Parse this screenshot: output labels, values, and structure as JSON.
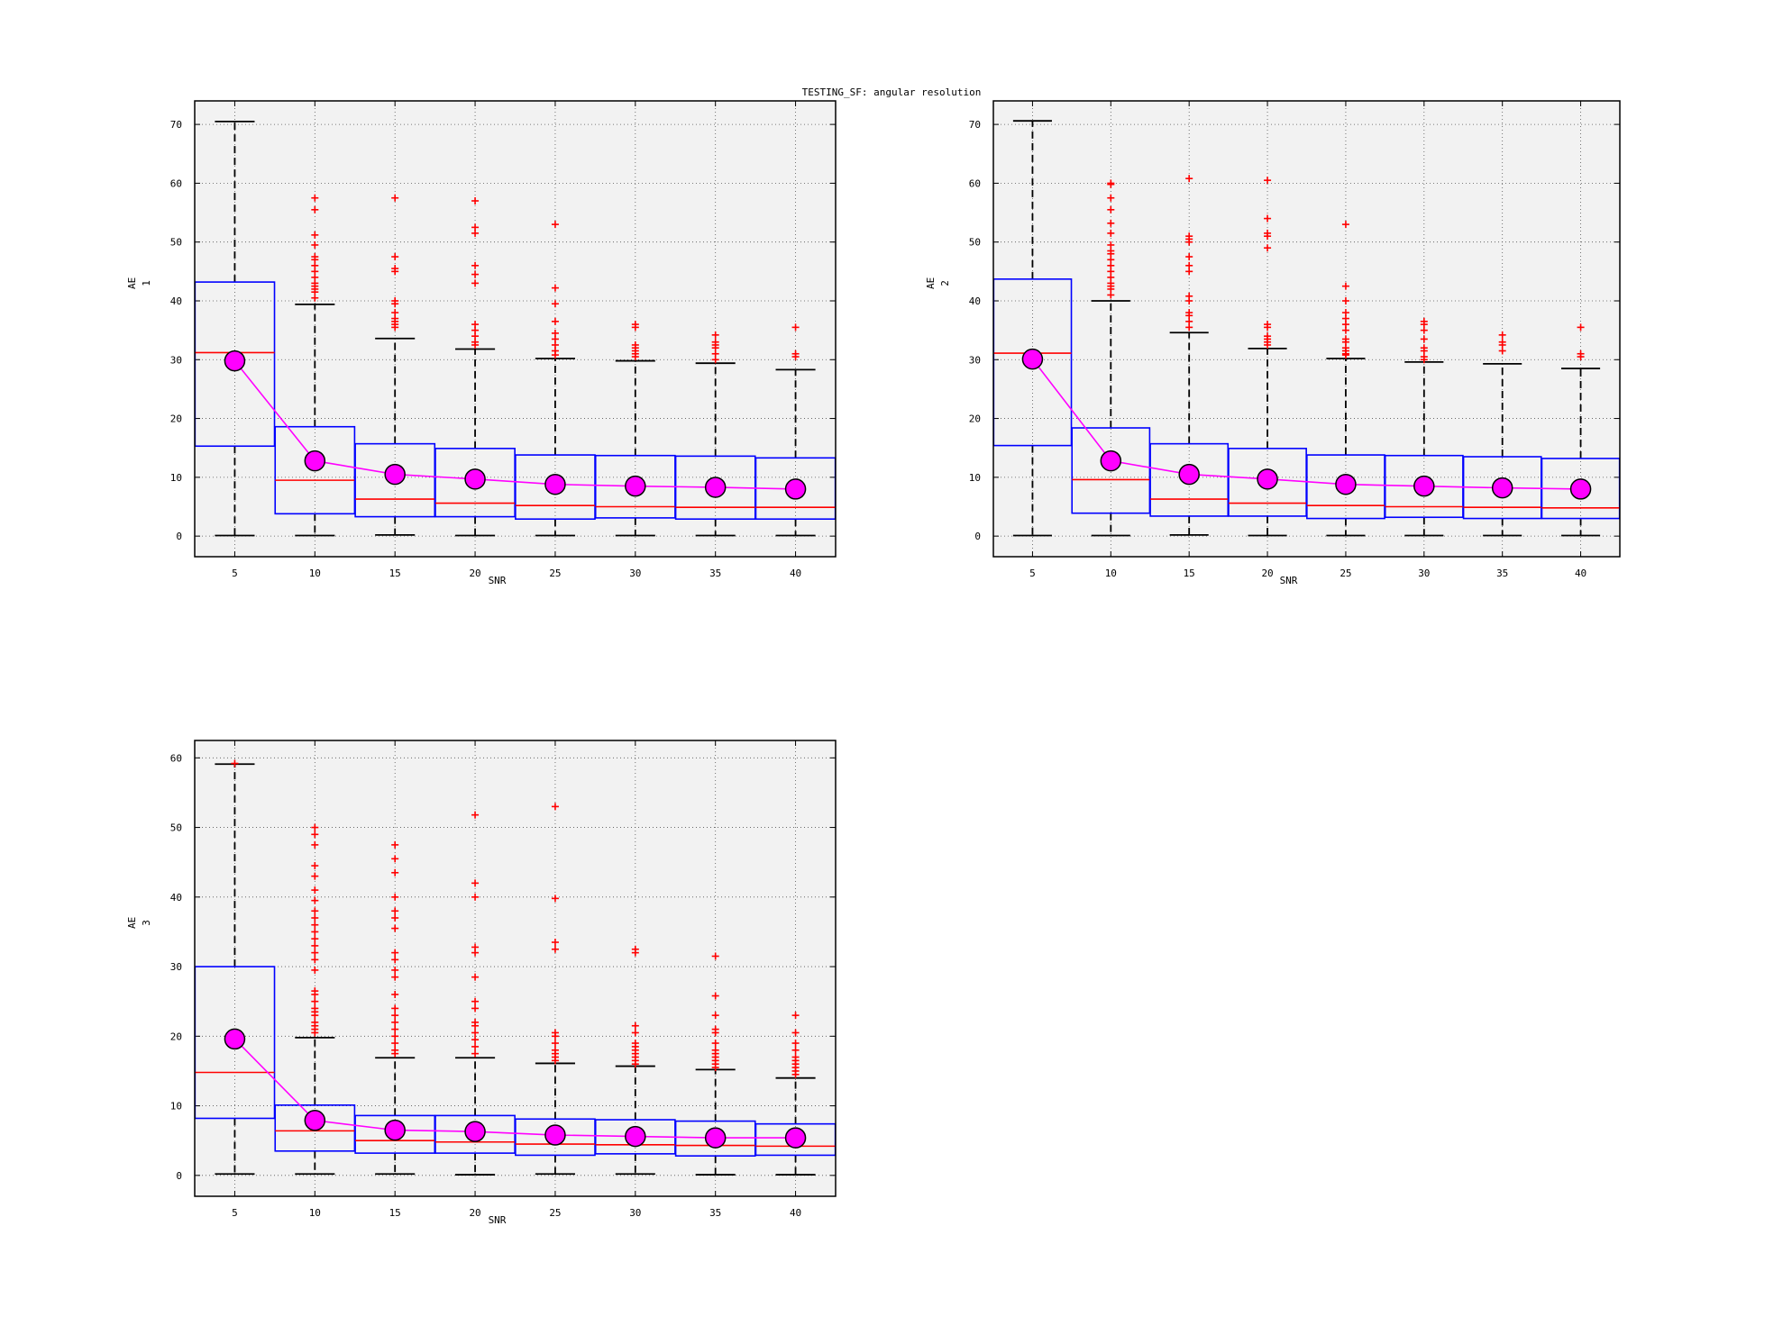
{
  "figure_title": "TESTING_SF: angular resolution",
  "colors": {
    "plot_bg": "#f2f2f2",
    "box": "#0000ff",
    "median": "#ff0000",
    "outlier": "#ff0000",
    "whisker": "#000000",
    "mean_line": "#ff00ff",
    "mean_marker": "#ff00ff"
  },
  "chart_data": [
    {
      "type": "box",
      "xlabel": "SNR",
      "ylabel": "AE",
      "ylabel_sub": "1",
      "categories": [
        "5",
        "10",
        "15",
        "20",
        "25",
        "30",
        "35",
        "40"
      ],
      "ylim": [
        -3.5,
        74
      ],
      "yticks": [
        0,
        10,
        20,
        30,
        40,
        50,
        60,
        70
      ],
      "grid": true,
      "boxes": [
        {
          "q1": 15.3,
          "median": 31.2,
          "q3": 43.2,
          "whisker_low": 0.1,
          "whisker_high": 70.5,
          "mean": 29.8,
          "outliers": []
        },
        {
          "q1": 3.8,
          "median": 9.5,
          "q3": 18.6,
          "whisker_low": 0.1,
          "whisker_high": 39.4,
          "mean": 12.8,
          "outliers": [
            40.5,
            41.5,
            42.0,
            42.5,
            43.0,
            44.0,
            45.0,
            46.0,
            47.0,
            47.5,
            49.5,
            51.2,
            55.5,
            57.5
          ]
        },
        {
          "q1": 3.3,
          "median": 6.3,
          "q3": 15.7,
          "whisker_low": 0.2,
          "whisker_high": 33.6,
          "mean": 10.5,
          "outliers": [
            35.5,
            36.0,
            36.5,
            37.0,
            38.0,
            39.5,
            40.0,
            45.0,
            45.5,
            47.5,
            57.5
          ]
        },
        {
          "q1": 3.3,
          "median": 5.6,
          "q3": 14.9,
          "whisker_low": 0.1,
          "whisker_high": 31.8,
          "mean": 9.7,
          "outliers": [
            32.5,
            33.0,
            34.0,
            35.0,
            36.0,
            43.0,
            44.5,
            46.0,
            51.5,
            52.5,
            57.0
          ]
        },
        {
          "q1": 2.9,
          "median": 5.2,
          "q3": 13.8,
          "whisker_low": 0.1,
          "whisker_high": 30.2,
          "mean": 8.8,
          "outliers": [
            30.8,
            31.5,
            32.5,
            33.5,
            34.5,
            36.5,
            39.5,
            42.2,
            53.0
          ]
        },
        {
          "q1": 3.1,
          "median": 5.0,
          "q3": 13.7,
          "whisker_low": 0.1,
          "whisker_high": 29.8,
          "mean": 8.5,
          "outliers": [
            30.5,
            31.0,
            31.5,
            32.0,
            32.5,
            35.5,
            36.0
          ]
        },
        {
          "q1": 2.9,
          "median": 4.9,
          "q3": 13.6,
          "whisker_low": 0.1,
          "whisker_high": 29.4,
          "mean": 8.3,
          "outliers": [
            30.0,
            31.0,
            32.0,
            32.5,
            33.0,
            34.2
          ]
        },
        {
          "q1": 2.9,
          "median": 4.9,
          "q3": 13.3,
          "whisker_low": 0.1,
          "whisker_high": 28.3,
          "mean": 8.0,
          "outliers": [
            30.5,
            31.0,
            35.5
          ]
        }
      ]
    },
    {
      "type": "box",
      "xlabel": "SNR",
      "ylabel": "AE",
      "ylabel_sub": "2",
      "categories": [
        "5",
        "10",
        "15",
        "20",
        "25",
        "30",
        "35",
        "40"
      ],
      "ylim": [
        -3.5,
        74
      ],
      "yticks": [
        0,
        10,
        20,
        30,
        40,
        50,
        60,
        70
      ],
      "grid": true,
      "boxes": [
        {
          "q1": 15.4,
          "median": 31.1,
          "q3": 43.7,
          "whisker_low": 0.1,
          "whisker_high": 70.6,
          "mean": 30.1,
          "outliers": []
        },
        {
          "q1": 3.9,
          "median": 9.6,
          "q3": 18.4,
          "whisker_low": 0.1,
          "whisker_high": 40.0,
          "mean": 12.8,
          "outliers": [
            41.0,
            42.0,
            42.5,
            43.0,
            44.0,
            45.0,
            46.0,
            47.0,
            48.0,
            48.5,
            49.5,
            51.5,
            53.2,
            55.5,
            57.5,
            59.8,
            60.0
          ]
        },
        {
          "q1": 3.4,
          "median": 6.3,
          "q3": 15.7,
          "whisker_low": 0.2,
          "whisker_high": 34.6,
          "mean": 10.5,
          "outliers": [
            35.5,
            36.5,
            37.5,
            38.0,
            40.0,
            40.8,
            45.0,
            46.0,
            47.5,
            50.0,
            50.5,
            51.0,
            60.8
          ]
        },
        {
          "q1": 3.4,
          "median": 5.6,
          "q3": 14.9,
          "whisker_low": 0.1,
          "whisker_high": 31.9,
          "mean": 9.7,
          "outliers": [
            32.5,
            33.0,
            33.5,
            34.0,
            35.5,
            36.0,
            49.0,
            51.0,
            51.5,
            54.0,
            60.5
          ]
        },
        {
          "q1": 3.0,
          "median": 5.2,
          "q3": 13.8,
          "whisker_low": 0.1,
          "whisker_high": 30.2,
          "mean": 8.8,
          "outliers": [
            30.8,
            31.0,
            31.5,
            32.0,
            33.0,
            33.5,
            35.0,
            36.0,
            37.0,
            38.0,
            40.0,
            42.5,
            53.0
          ]
        },
        {
          "q1": 3.2,
          "median": 5.0,
          "q3": 13.7,
          "whisker_low": 0.1,
          "whisker_high": 29.6,
          "mean": 8.5,
          "outliers": [
            30.0,
            30.5,
            31.5,
            32.0,
            33.5,
            35.0,
            36.0,
            36.5
          ]
        },
        {
          "q1": 3.0,
          "median": 4.9,
          "q3": 13.5,
          "whisker_low": 0.1,
          "whisker_high": 29.3,
          "mean": 8.2,
          "outliers": [
            31.5,
            32.5,
            33.0,
            34.2
          ]
        },
        {
          "q1": 3.0,
          "median": 4.8,
          "q3": 13.2,
          "whisker_low": 0.1,
          "whisker_high": 28.5,
          "mean": 8.0,
          "outliers": [
            30.5,
            31.0,
            35.5
          ]
        }
      ]
    },
    {
      "type": "box",
      "xlabel": "SNR",
      "ylabel": "AE",
      "ylabel_sub": "3",
      "categories": [
        "5",
        "10",
        "15",
        "20",
        "25",
        "30",
        "35",
        "40"
      ],
      "ylim": [
        -3,
        62.5
      ],
      "yticks": [
        0,
        10,
        20,
        30,
        40,
        50,
        60
      ],
      "grid": true,
      "boxes": [
        {
          "q1": 8.2,
          "median": 14.8,
          "q3": 30.0,
          "whisker_low": 0.2,
          "whisker_high": 59.1,
          "mean": 19.6,
          "outliers": [
            59.2
          ]
        },
        {
          "q1": 3.5,
          "median": 6.4,
          "q3": 10.1,
          "whisker_low": 0.2,
          "whisker_high": 19.8,
          "mean": 7.9,
          "outliers": [
            20.5,
            21.0,
            21.5,
            22.0,
            23.0,
            23.5,
            24.0,
            25.0,
            26.0,
            26.5,
            29.5,
            31.0,
            32.0,
            33.0,
            34.0,
            35.0,
            36.0,
            37.0,
            38.0,
            39.5,
            41.0,
            43.0,
            44.5,
            47.5,
            49.0,
            50.0
          ]
        },
        {
          "q1": 3.2,
          "median": 5.0,
          "q3": 8.6,
          "whisker_low": 0.2,
          "whisker_high": 16.9,
          "mean": 6.5,
          "outliers": [
            17.5,
            18.0,
            19.0,
            20.0,
            21.0,
            22.0,
            23.0,
            24.0,
            26.0,
            28.5,
            29.5,
            31.0,
            32.0,
            35.5,
            37.0,
            38.0,
            40.0,
            43.5,
            45.5,
            47.5
          ]
        },
        {
          "q1": 3.2,
          "median": 4.8,
          "q3": 8.6,
          "whisker_low": 0.1,
          "whisker_high": 16.9,
          "mean": 6.3,
          "outliers": [
            17.5,
            18.5,
            19.5,
            20.5,
            21.5,
            22.0,
            24.0,
            25.0,
            28.5,
            32.0,
            32.8,
            40.0,
            42.0,
            51.8
          ]
        },
        {
          "q1": 2.9,
          "median": 4.5,
          "q3": 8.1,
          "whisker_low": 0.2,
          "whisker_high": 16.1,
          "mean": 5.8,
          "outliers": [
            16.5,
            17.0,
            17.5,
            18.0,
            19.0,
            20.0,
            20.5,
            32.5,
            33.5,
            39.8,
            53.0
          ]
        },
        {
          "q1": 3.1,
          "median": 4.4,
          "q3": 8.0,
          "whisker_low": 0.2,
          "whisker_high": 15.7,
          "mean": 5.6,
          "outliers": [
            16.0,
            16.5,
            17.0,
            17.5,
            18.0,
            18.5,
            19.0,
            20.5,
            21.5,
            32.0,
            32.5
          ]
        },
        {
          "q1": 2.8,
          "median": 4.3,
          "q3": 7.8,
          "whisker_low": 0.1,
          "whisker_high": 15.2,
          "mean": 5.4,
          "outliers": [
            15.5,
            16.0,
            16.5,
            17.0,
            17.5,
            18.0,
            19.0,
            20.5,
            21.0,
            23.0,
            25.8,
            31.5
          ]
        },
        {
          "q1": 2.9,
          "median": 4.2,
          "q3": 7.4,
          "whisker_low": 0.1,
          "whisker_high": 14.0,
          "mean": 5.4,
          "outliers": [
            14.5,
            15.0,
            15.5,
            16.0,
            16.5,
            17.0,
            18.0,
            19.0,
            20.5,
            23.0
          ]
        }
      ]
    }
  ]
}
